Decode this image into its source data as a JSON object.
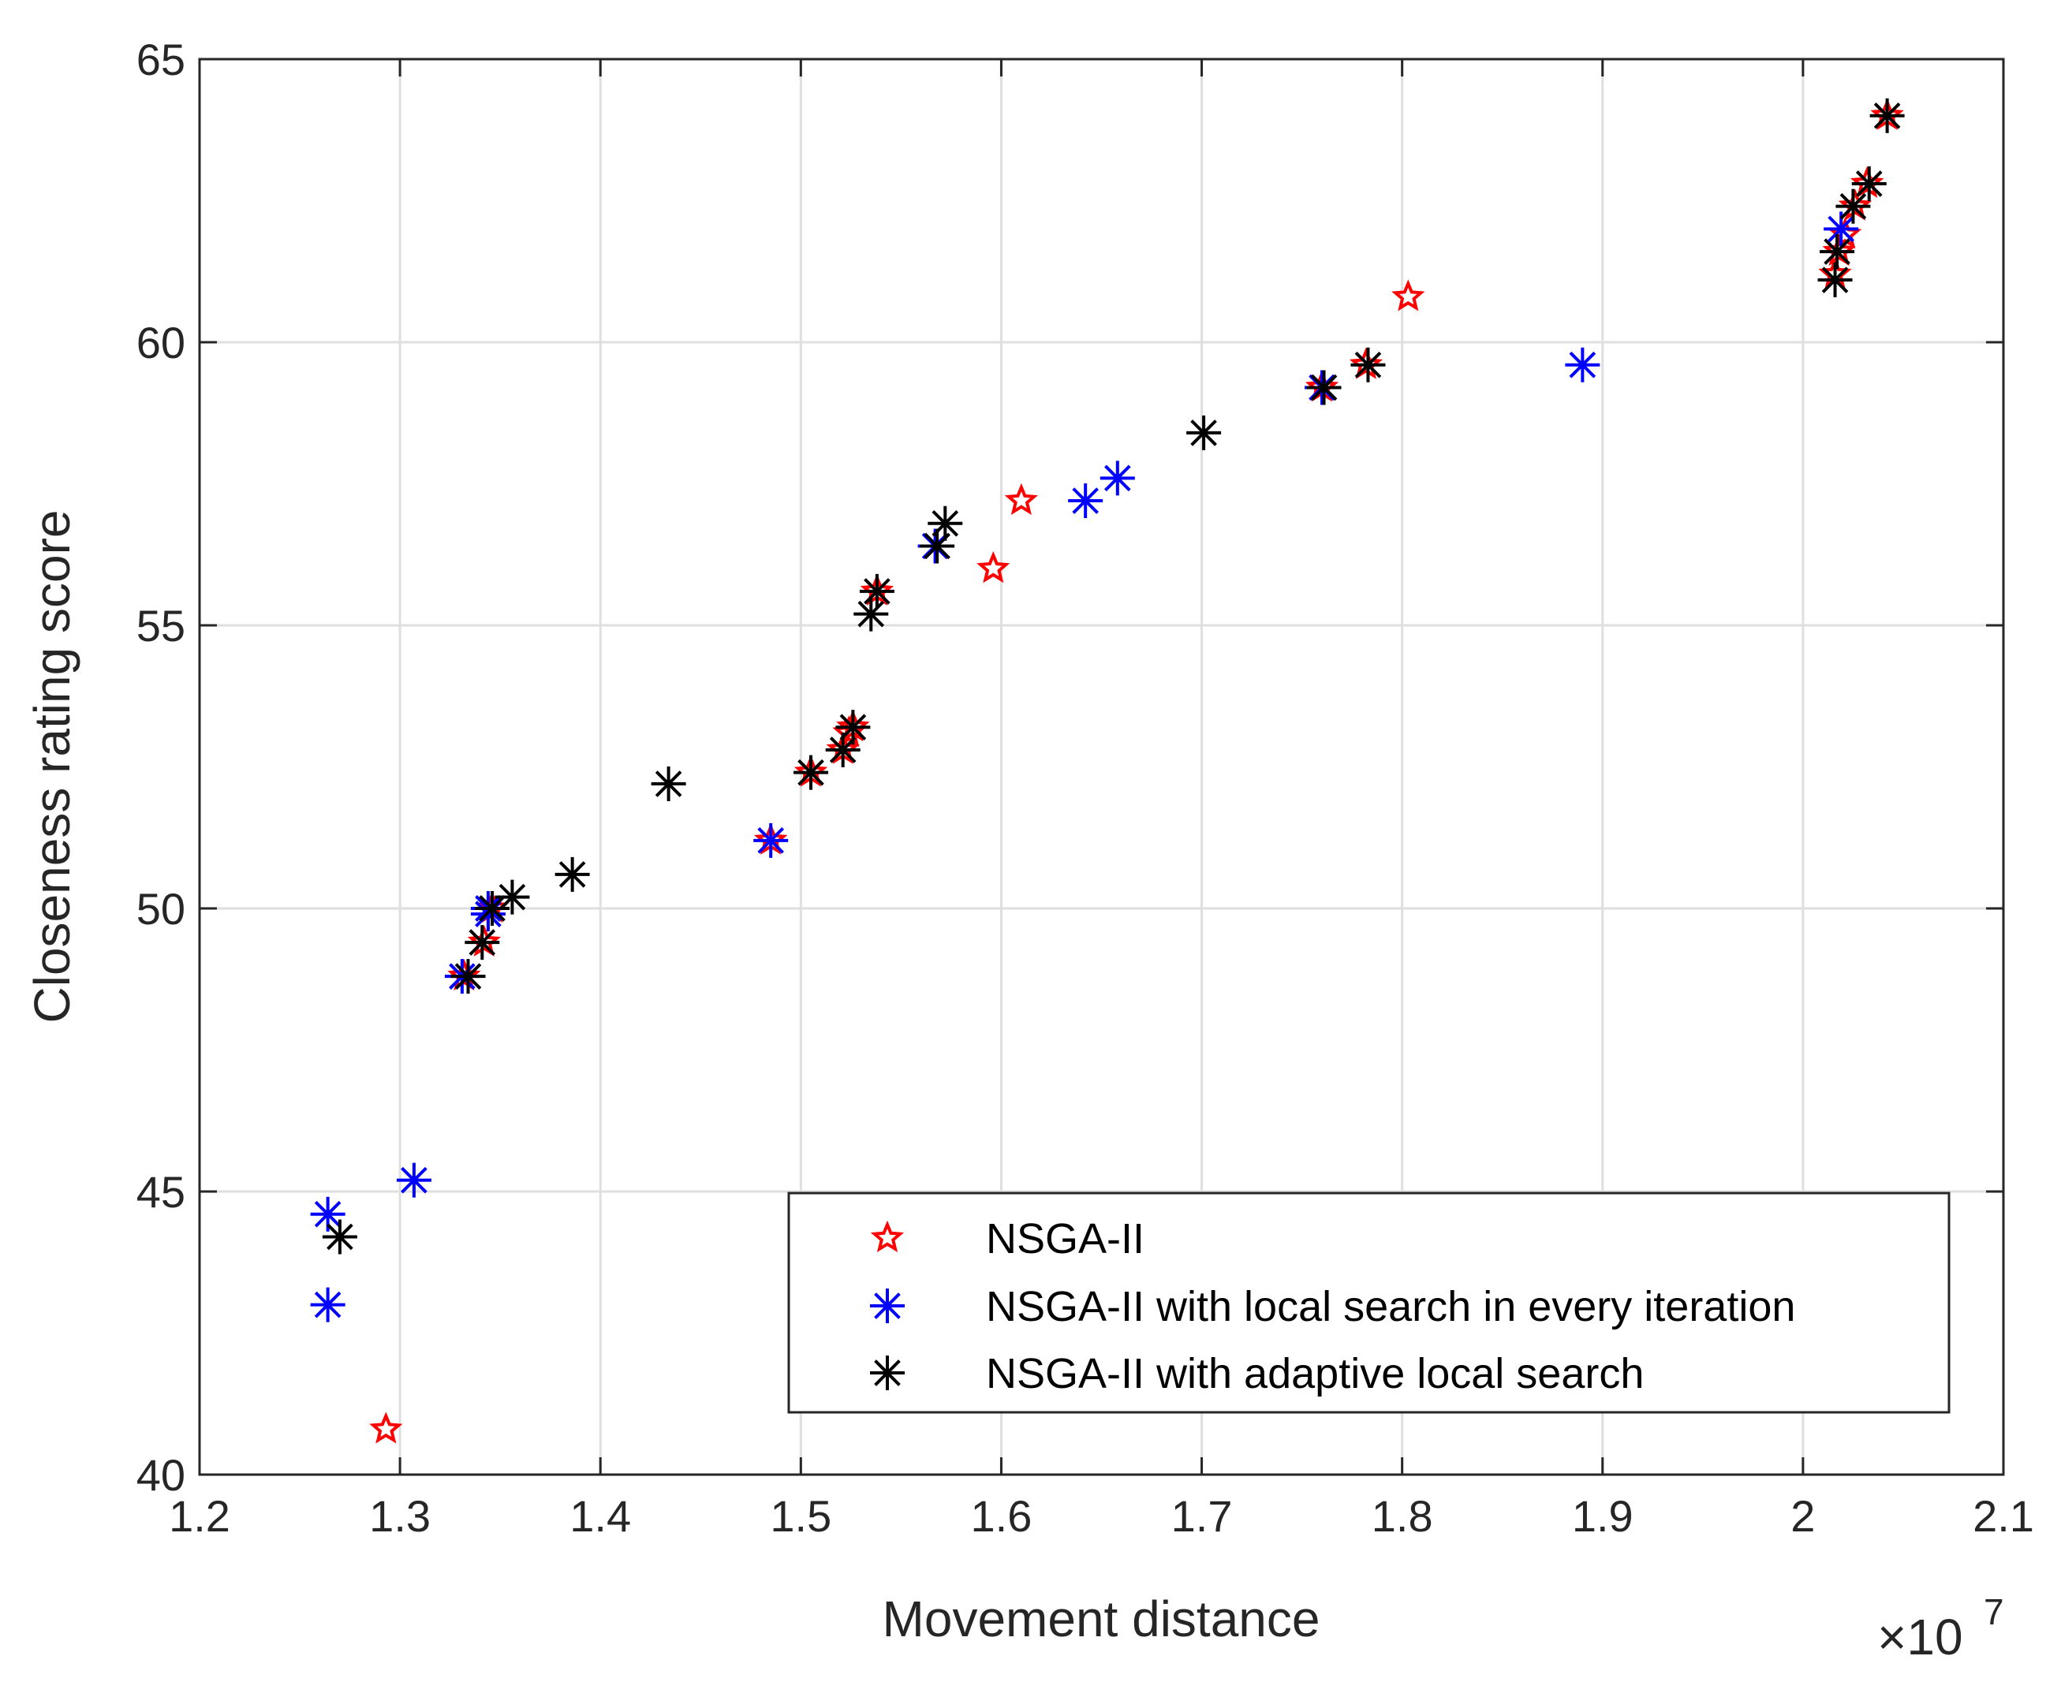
{
  "chart_data": {
    "type": "scatter",
    "title": "",
    "xlabel": "Movement distance",
    "ylabel": "Closeness rating score",
    "x_exponent": "×10",
    "x_exponent_power": "7",
    "xlim": [
      1.2,
      2.1
    ],
    "ylim": [
      40,
      65
    ],
    "xticks": [
      1.2,
      1.3,
      1.4,
      1.5,
      1.6,
      1.7,
      1.8,
      1.9,
      2.0,
      2.1
    ],
    "xtick_labels": [
      "1.2",
      "1.3",
      "1.4",
      "1.5",
      "1.6",
      "1.7",
      "1.8",
      "1.9",
      "2",
      "2.1"
    ],
    "yticks": [
      40,
      45,
      50,
      55,
      60,
      65
    ],
    "ytick_labels": [
      "40",
      "45",
      "50",
      "55",
      "60",
      "65"
    ],
    "grid": true,
    "legend_position": "bottom-right",
    "series": [
      {
        "name": "NSGA-II",
        "marker": "star",
        "color": "#ff0000",
        "x": [
          1.293,
          1.332,
          1.342,
          1.346,
          1.485,
          1.505,
          1.521,
          1.524,
          1.526,
          1.538,
          1.596,
          1.61,
          1.76,
          1.782,
          1.803,
          2.016,
          2.018,
          2.021,
          2.026,
          2.032,
          2.042
        ],
        "y": [
          40.8,
          48.8,
          49.4,
          50.0,
          51.2,
          52.4,
          52.8,
          53.1,
          53.2,
          55.6,
          56.0,
          57.2,
          59.2,
          59.6,
          60.8,
          61.2,
          61.6,
          61.9,
          62.4,
          62.8,
          64.0
        ]
      },
      {
        "name": "NSGA-II with local search in every iteration",
        "marker": "asterisk",
        "color": "#0000ff",
        "x": [
          1.264,
          1.264,
          1.307,
          1.331,
          1.344,
          1.344,
          1.485,
          1.567,
          1.642,
          1.658,
          1.76,
          1.89,
          2.019
        ],
        "y": [
          43.0,
          44.6,
          45.2,
          48.8,
          50.0,
          49.9,
          51.2,
          56.4,
          57.2,
          57.6,
          59.2,
          59.6,
          62.0
        ]
      },
      {
        "name": "NSGA-II with adaptive local search",
        "marker": "asterisk",
        "color": "#000000",
        "x": [
          1.27,
          1.334,
          1.341,
          1.346,
          1.356,
          1.386,
          1.434,
          1.505,
          1.521,
          1.526,
          1.535,
          1.538,
          1.568,
          1.572,
          1.701,
          1.761,
          1.783,
          2.016,
          2.017,
          2.025,
          2.033,
          2.042
        ],
        "y": [
          44.2,
          48.8,
          49.4,
          50.0,
          50.2,
          50.6,
          52.2,
          52.4,
          52.8,
          53.2,
          55.2,
          55.6,
          56.4,
          56.8,
          58.4,
          59.2,
          59.6,
          61.1,
          61.6,
          62.4,
          62.8,
          64.0
        ]
      }
    ]
  }
}
